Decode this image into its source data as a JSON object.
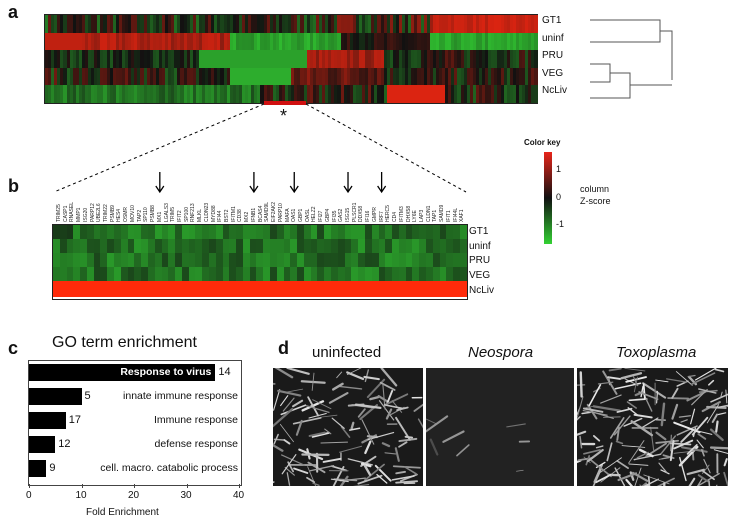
{
  "panels": {
    "a": "a",
    "b": "b",
    "c": "c",
    "d": "d"
  },
  "heatmap_a": {
    "rows": [
      "GT1",
      "uninf",
      "PRU",
      "VEG",
      "NcLiv"
    ],
    "marker": "*"
  },
  "heatmap_b": {
    "rows": [
      "GT1",
      "uninf",
      "PRU",
      "VEG",
      "NcLiv"
    ],
    "genes": [
      "TRIM25",
      "CASP1",
      "RNASEL",
      "MMP1",
      "ISG20",
      "PARP12",
      "UBE2L6",
      "TRIM22",
      "PSMB9",
      "HES4",
      "OSMR",
      "MOV10",
      "TAP2",
      "SP110",
      "PSMB8",
      "MX1",
      "LGALS3",
      "TRIM5",
      "IFIT2",
      "SP100",
      "RNF213",
      "MLKL",
      "CLDN23",
      "MYD88",
      "IFI44",
      "BST2",
      "IFITM1",
      "CD38",
      "MX2",
      "IFNB1",
      "BCAS4",
      "SAMD9L",
      "EIF2AK2",
      "PARP10",
      "MAFA",
      "OAS1",
      "GBP1",
      "OASL",
      "HELZ2",
      "IFI27",
      "GBP4",
      "IFI35",
      "GAS2",
      "ISG15",
      "PLSCR1",
      "DDX58",
      "IFI16",
      "GMPR",
      "IRF7",
      "HERC5",
      "CD4",
      "IFITM3",
      "DHX58",
      "LY6E",
      "LAP3",
      "CLDN1",
      "TAP1",
      "SAMD9",
      "IFIT1",
      "IFI44L",
      "XAF1"
    ],
    "arrow_genes": [
      "MX1",
      "IFNB1",
      "OAS1",
      "ISG15",
      "IRF7"
    ]
  },
  "color_key": {
    "title": "Color key",
    "ticks": [
      "1",
      "0",
      "-1"
    ],
    "label_line1": "column",
    "label_line2": "Z-score",
    "colors": {
      "high": "#e8251a",
      "mid": "#111111",
      "low": "#33d133"
    }
  },
  "go": {
    "title": "GO term enrichment",
    "xlabel": "Fold Enrichment",
    "ticks": [
      "0",
      "10",
      "20",
      "30",
      "40"
    ],
    "terms": [
      {
        "label": "Response to virus",
        "fold": 35.5,
        "count": "14"
      },
      {
        "label": "innate immune response",
        "fold": 10,
        "count": "5"
      },
      {
        "label": "Immune response",
        "fold": 7,
        "count": "17"
      },
      {
        "label": "defense response",
        "fold": 5,
        "count": "12"
      },
      {
        "label": "cell. macro. catabolic process",
        "fold": 3.3,
        "count": "9"
      }
    ]
  },
  "micrographs": {
    "titles": [
      "uninfected",
      "Neospora",
      "Toxoplasma"
    ]
  },
  "chart_data": {
    "type": "bar",
    "title": "GO term enrichment",
    "xlabel": "Fold Enrichment",
    "categories": [
      "Response to virus",
      "innate immune response",
      "Immune response",
      "defense response",
      "cell. macro. catabolic process"
    ],
    "values": [
      35.5,
      10,
      7,
      5,
      3.3
    ],
    "annotations": [
      "14",
      "5",
      "17",
      "12",
      "9"
    ],
    "xlim": [
      0,
      40
    ]
  }
}
